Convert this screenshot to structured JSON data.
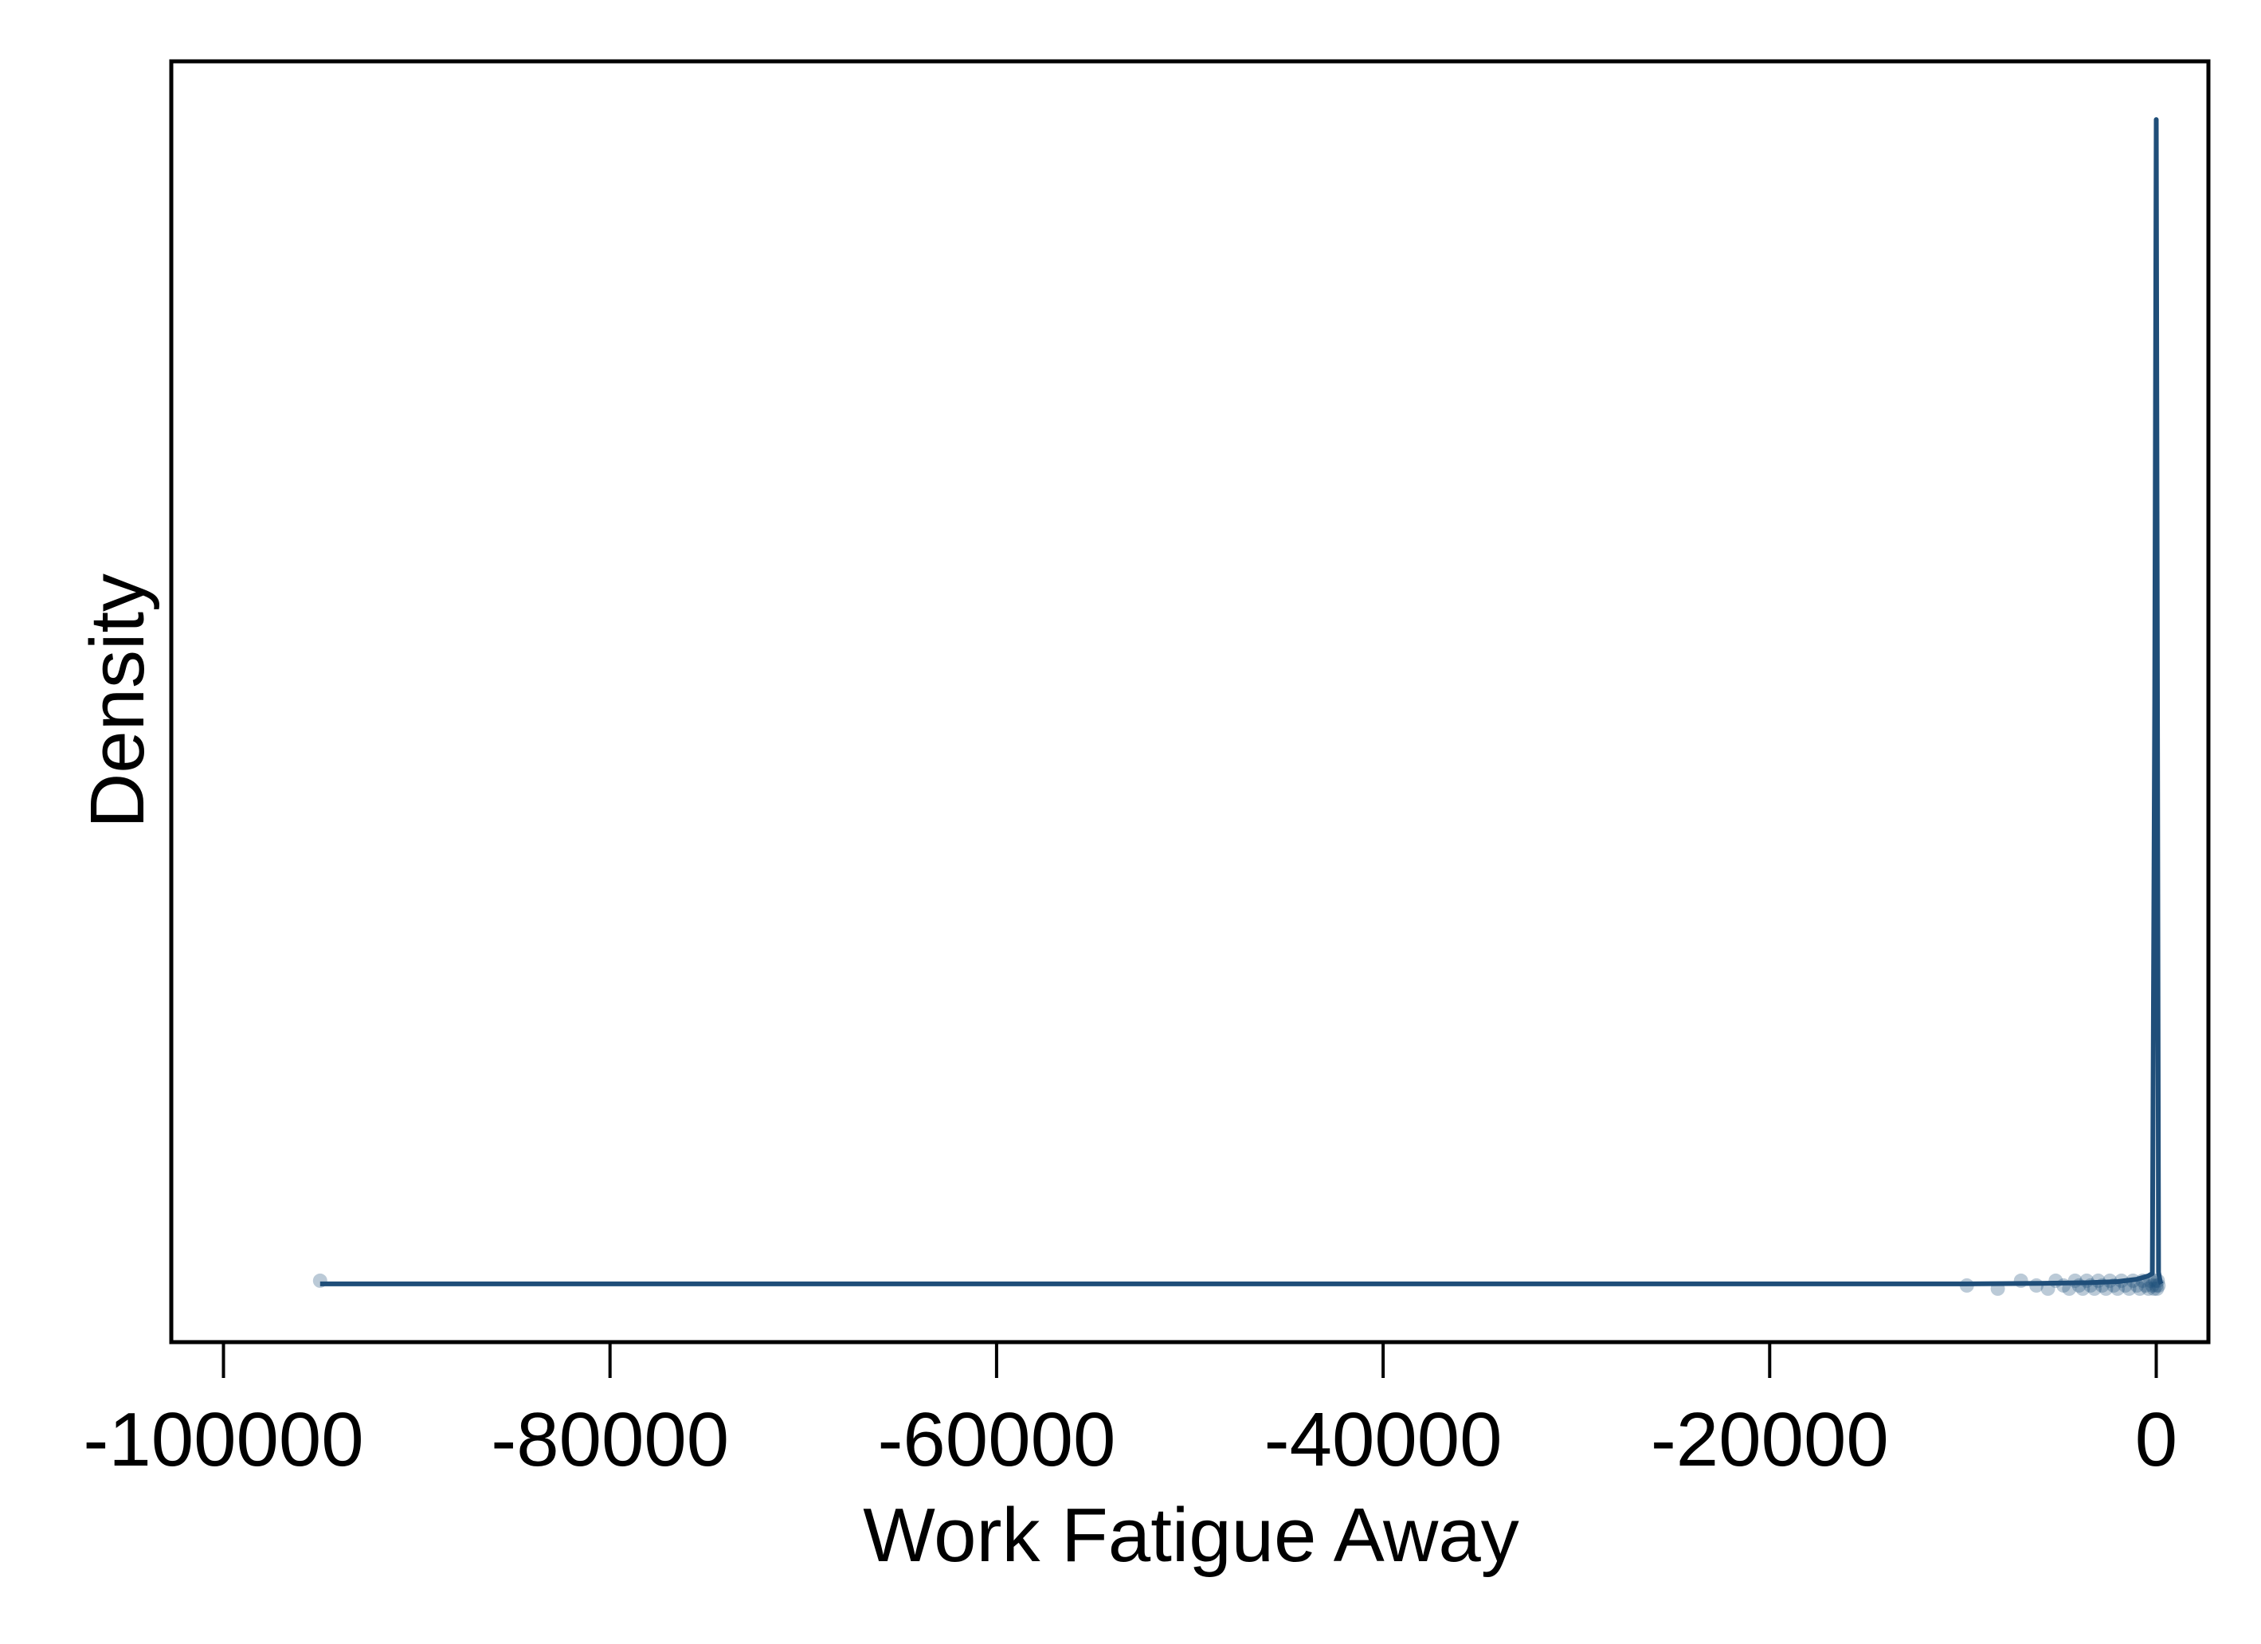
{
  "chart_data": {
    "type": "line",
    "title": "",
    "xlabel": "Work Fatigue Away",
    "ylabel": "Density",
    "xlim": [
      -102700,
      2700
    ],
    "ylim": [
      -0.05,
      1.05
    ],
    "xticks": [
      -100000,
      -80000,
      -60000,
      -40000,
      -20000,
      0
    ],
    "xtick_labels": [
      "-100000",
      "-80000",
      "-60000",
      "-40000",
      "-20000",
      "0"
    ],
    "yticks_shown": false,
    "grid": false,
    "legend": "none",
    "series": [
      {
        "x": [
          -95000,
          -9800,
          -6000,
          -3500,
          -2000,
          -1000,
          -400,
          -200,
          -80,
          0,
          60,
          120,
          200,
          260
        ],
        "y": [
          0.0,
          0.0,
          0.0005,
          0.001,
          0.002,
          0.004,
          0.007,
          0.009,
          0.5,
          1.0,
          0.5,
          0.01,
          0.002,
          0.0
        ],
        "color": "#1f4e79"
      }
    ],
    "rug": {
      "color": "#1f4e79",
      "x": [
        -95000,
        -9800,
        -8200,
        -7000,
        -6200,
        -5600,
        -5200,
        -4800,
        -4500,
        -4200,
        -4000,
        -3800,
        -3600,
        -3400,
        -3200,
        -3000,
        -2800,
        -2600,
        -2400,
        -2200,
        -2000,
        -1800,
        -1600,
        -1400,
        -1200,
        -1000,
        -850,
        -700,
        -550,
        -400,
        -300,
        -200,
        -120,
        -50,
        0,
        40,
        80,
        120
      ]
    }
  }
}
